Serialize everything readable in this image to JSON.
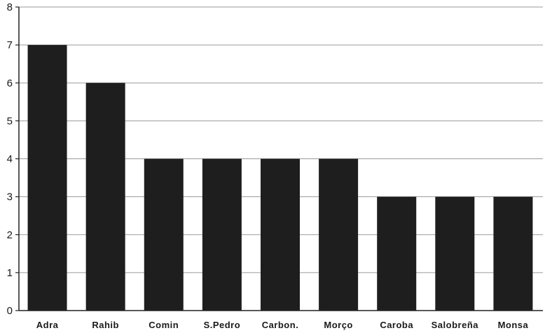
{
  "chart_data": {
    "type": "bar",
    "title": "",
    "xlabel": "",
    "ylabel": "",
    "categories": [
      "Adra",
      "Rahib",
      "Comin",
      "S.Pedro",
      "Carbon.",
      "Morço",
      "Caroba",
      "Salobreña",
      "Monsa"
    ],
    "values": [
      7,
      6,
      4,
      4,
      4,
      4,
      3,
      3,
      3
    ],
    "ylim": [
      0,
      8
    ],
    "yticks": [
      "0",
      "1",
      "2",
      "3",
      "4",
      "5",
      "6",
      "7",
      "8"
    ],
    "grid": true,
    "legend": "none",
    "bar_color": "#1e1e1e"
  }
}
